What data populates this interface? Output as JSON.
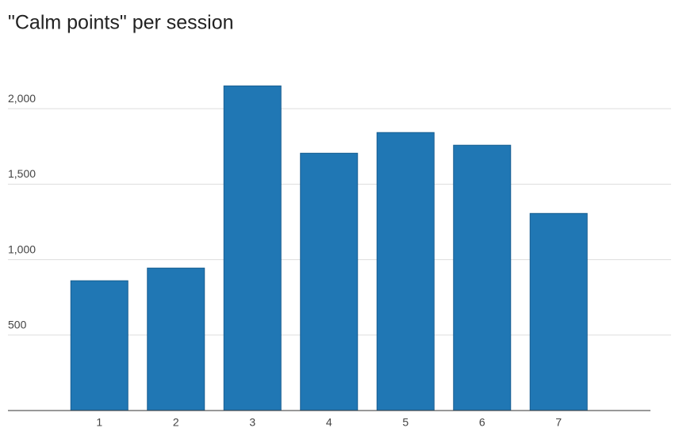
{
  "chart_data": {
    "type": "bar",
    "title": "\"Calm points\" per session",
    "categories": [
      "1",
      "2",
      "3",
      "4",
      "5",
      "6",
      "7"
    ],
    "values": [
      860,
      944,
      2151,
      1705,
      1842,
      1758,
      1306
    ],
    "color": "#2077b4",
    "ylim": [
      0,
      2300
    ],
    "yticks": [
      500,
      {
        "value": 1000,
        "label": "1,000"
      },
      {
        "value": 1500,
        "label": "1,500"
      },
      {
        "value": 2000,
        "label": "2,000"
      }
    ],
    "grid": true
  }
}
